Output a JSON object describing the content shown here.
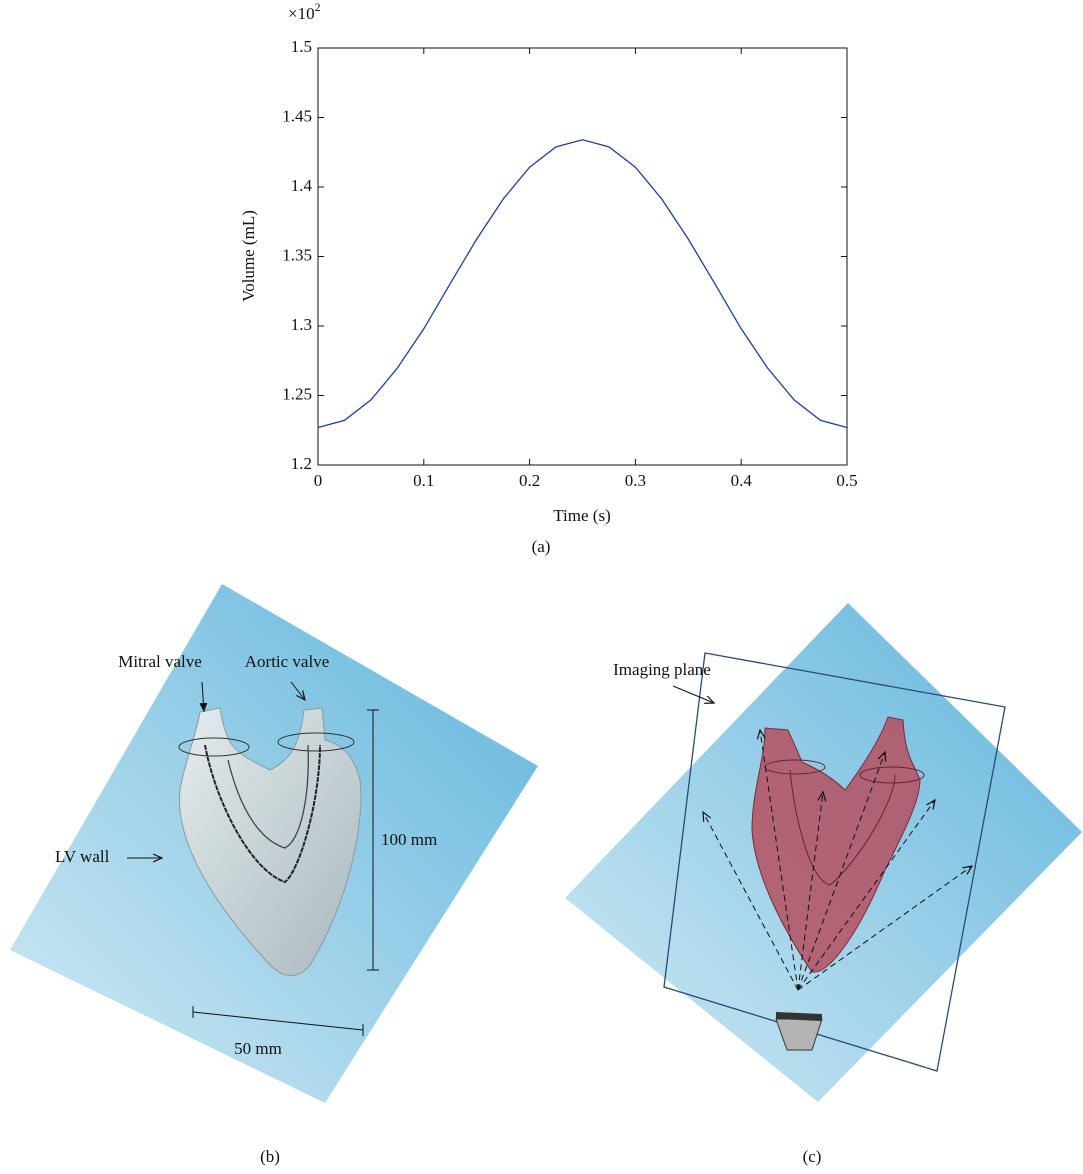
{
  "chart_data": {
    "type": "line",
    "xlabel": "Time (s)",
    "ylabel": "Volume (mL)",
    "y_multiplier": {
      "base": "×10",
      "exponent": "2"
    },
    "x": [
      0,
      0.025,
      0.05,
      0.075,
      0.1,
      0.125,
      0.15,
      0.175,
      0.2,
      0.225,
      0.25,
      0.275,
      0.3,
      0.325,
      0.35,
      0.375,
      0.4,
      0.425,
      0.45,
      0.475,
      0.5
    ],
    "series": [
      {
        "color": "#1f3f99",
        "values": [
          1.227,
          1.2321,
          1.2468,
          1.2697,
          1.298,
          1.3305,
          1.3625,
          1.3913,
          1.4142,
          1.4289,
          1.434,
          1.4289,
          1.4142,
          1.3913,
          1.3625,
          1.3305,
          1.298,
          1.2697,
          1.2468,
          1.2321,
          1.227
        ]
      }
    ],
    "xlim": [
      0,
      0.5
    ],
    "xticks": [
      0,
      0.1,
      0.2,
      0.3,
      0.4,
      0.5
    ],
    "ylim": [
      1.2,
      1.5
    ],
    "yticks": [
      1.2,
      1.25,
      1.3,
      1.35,
      1.4,
      1.45,
      1.5
    ],
    "grid": false
  },
  "panel_labels": [
    "(a)",
    "(b)",
    "(c)"
  ],
  "diagram_b": {
    "mitral": "Mitral valve",
    "aortic": "Aortic valve",
    "height": "100 mm",
    "width": "50 mm",
    "wall": "LV wall"
  },
  "diagram_c": {
    "plane": "Imaging plane"
  }
}
